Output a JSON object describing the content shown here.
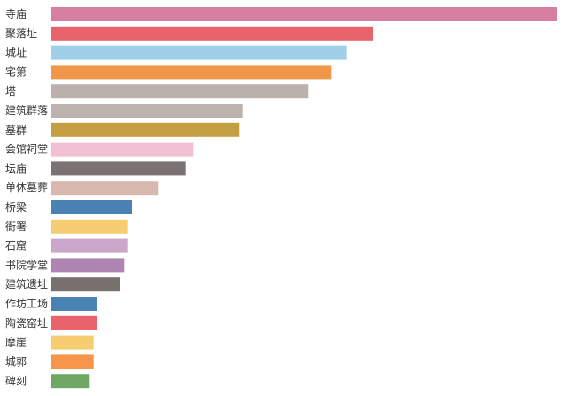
{
  "chart_data": {
    "type": "bar",
    "orientation": "horizontal",
    "title": "",
    "xlabel": "",
    "ylabel": "",
    "grid": false,
    "categories": [
      "寺庙",
      "聚落址",
      "城址",
      "宅第",
      "塔",
      "建筑群落",
      "墓群",
      "会馆祠堂",
      "坛庙",
      "单体墓葬",
      "桥梁",
      "衙署",
      "石窟",
      "书院学堂",
      "建筑遗址",
      "作坊工场",
      "陶瓷窑址",
      "摩崖",
      "城郭",
      "碑刻"
    ],
    "values": [
      132,
      84,
      77,
      73,
      67,
      50,
      49,
      37,
      35,
      28,
      21,
      20,
      20,
      19,
      18,
      12,
      12,
      11,
      11,
      10
    ],
    "colors": [
      "#d77fa1",
      "#e8636b",
      "#9fcfe9",
      "#f0974a",
      "#bab0ac",
      "#bcb2ae",
      "#c49e42",
      "#f2c0d3",
      "#7b7373",
      "#d8b8ae",
      "#4a82b3",
      "#f7cd72",
      "#caa6cb",
      "#ad85b0",
      "#78706f",
      "#4a82b3",
      "#e8636b",
      "#f7cd72",
      "#f7954a",
      "#6fa864"
    ]
  }
}
